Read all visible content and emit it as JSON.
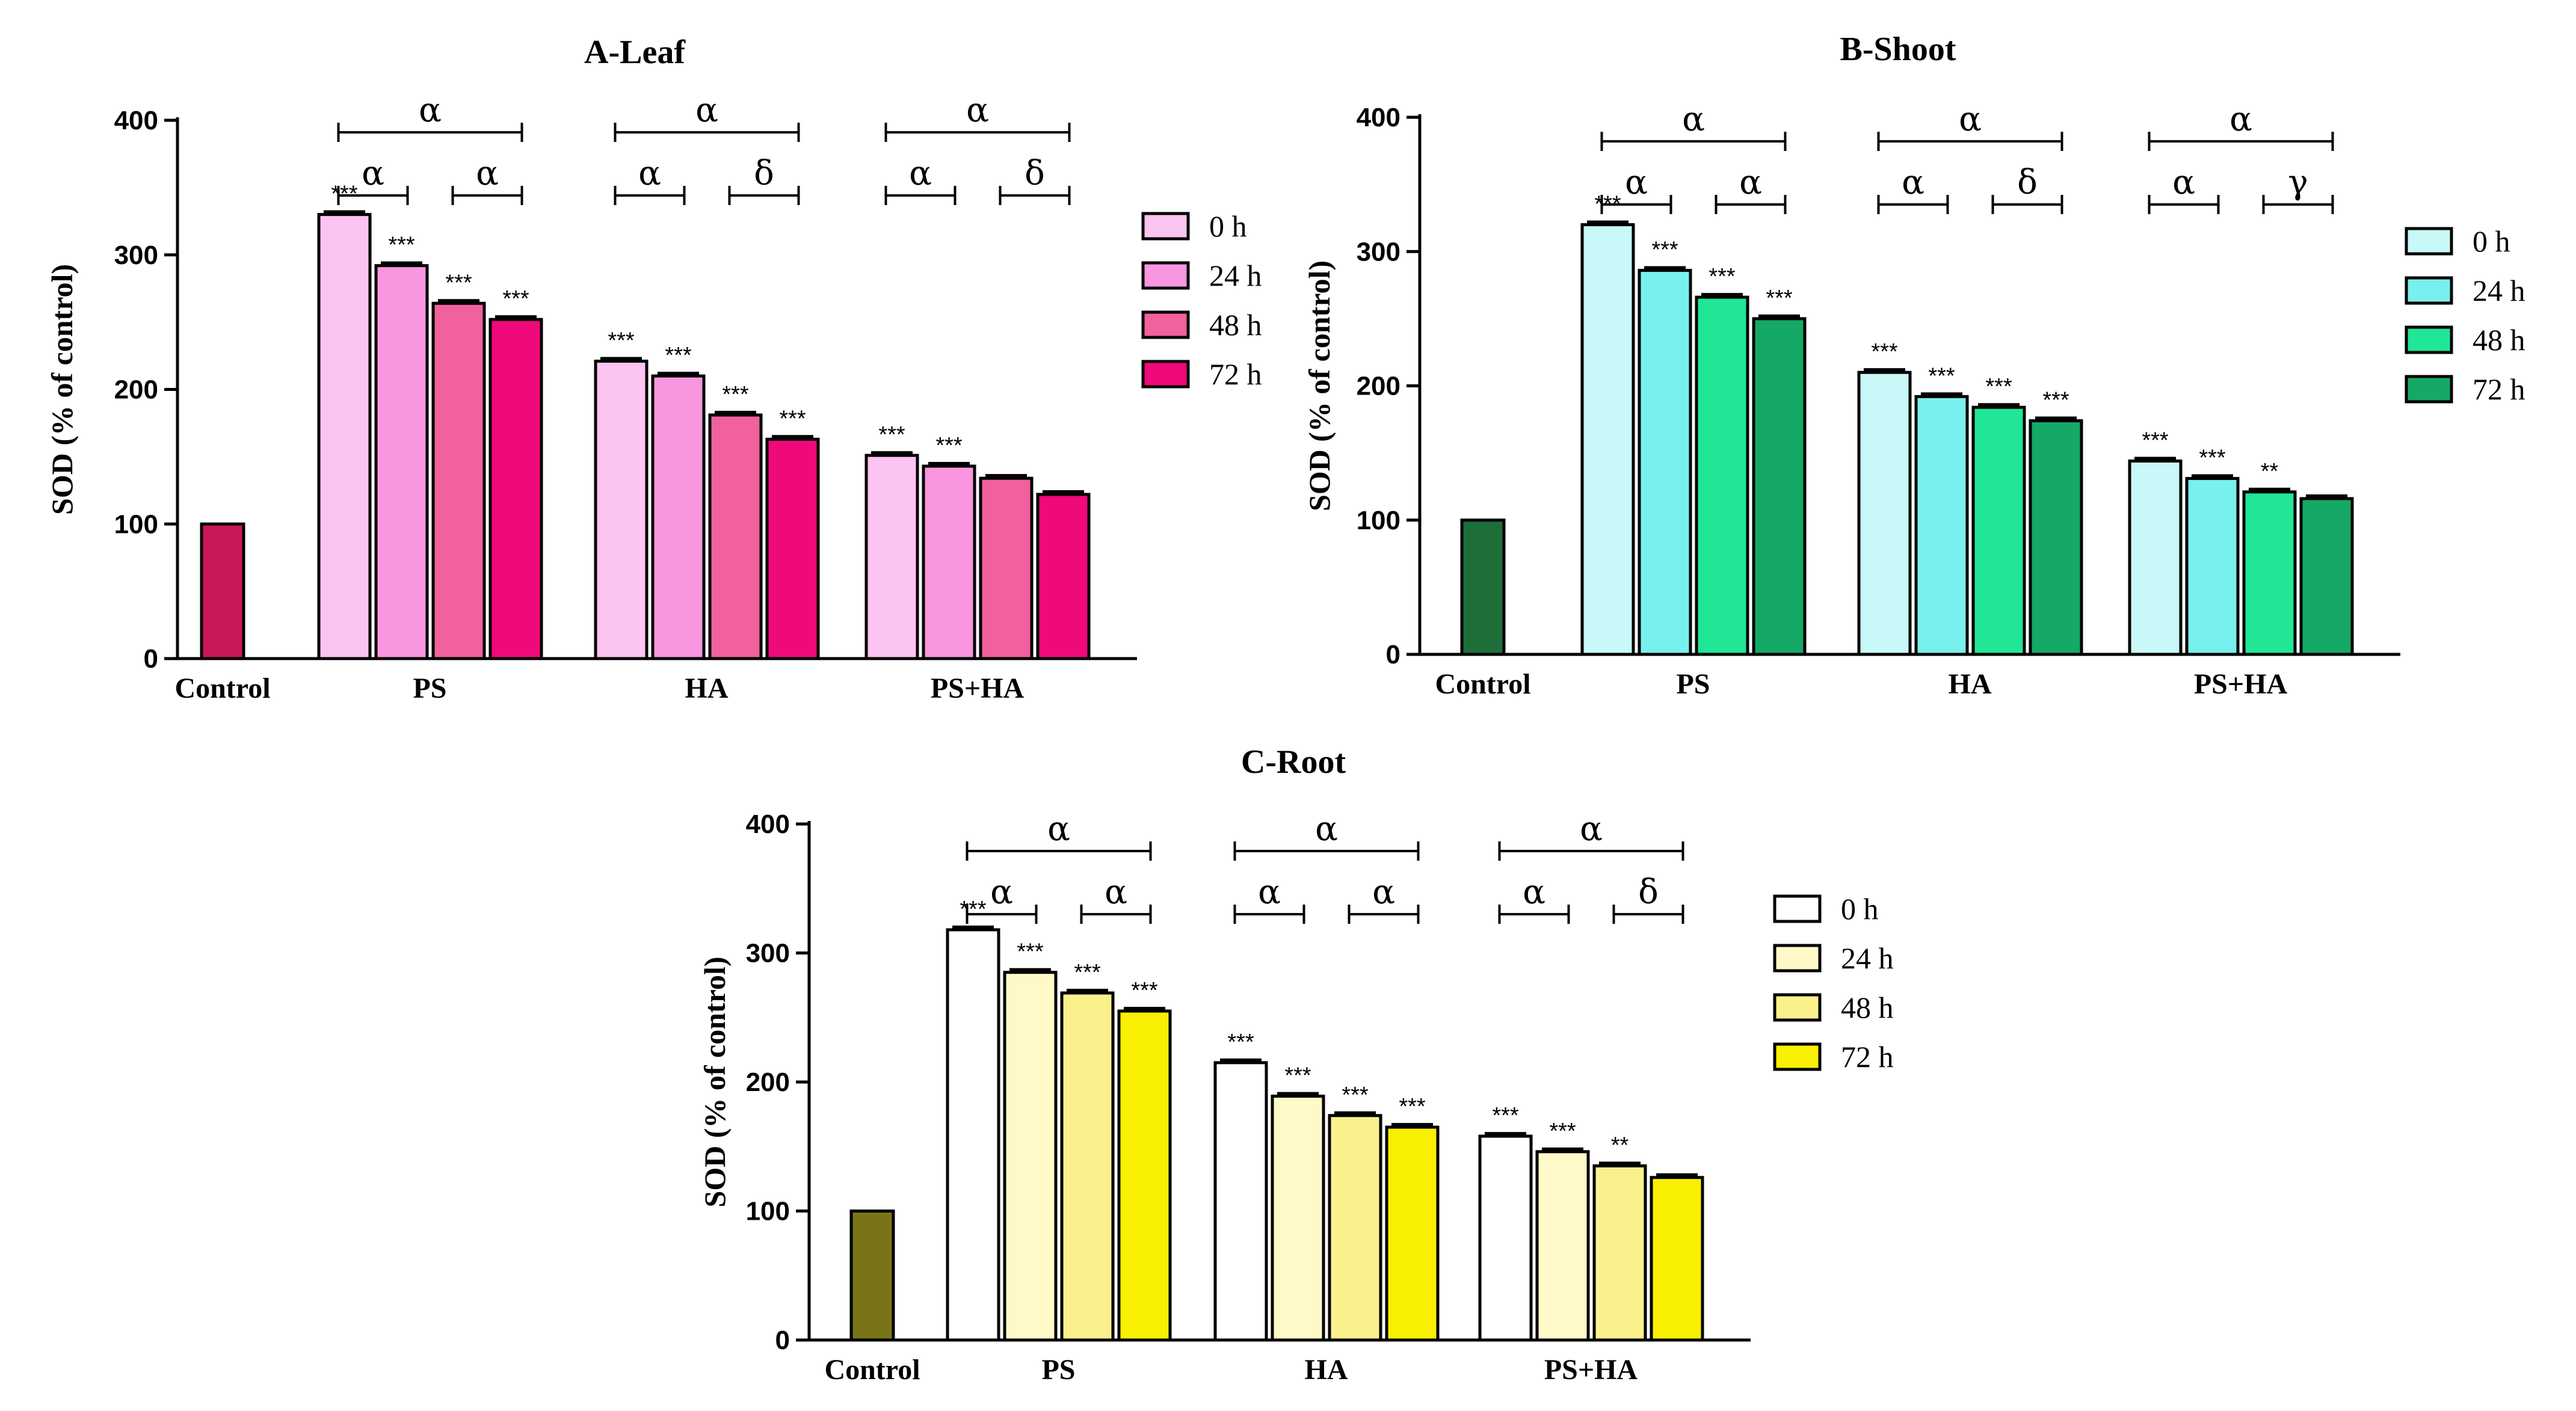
{
  "chart_data": [
    {
      "type": "bar",
      "title": "A-Leaf",
      "ylabel": "SOD (% of control)",
      "ylim": [
        0,
        400
      ],
      "yticks": [
        "0",
        "100",
        "200",
        "300",
        "400"
      ],
      "categories": [
        "Control",
        "PS",
        "HA",
        "PS+HA"
      ],
      "control_value": 100,
      "legend": [
        "0 h",
        "24 h",
        "48 h",
        "72 h"
      ],
      "legend_position": "right",
      "colors": {
        "control": "#C8185A",
        "series": [
          "#FCC4F0",
          "#F896E0",
          "#F0619E",
          "#F0097A"
        ]
      },
      "groups": [
        {
          "category": "PS",
          "values": [
            330,
            292,
            264,
            252
          ],
          "stars": [
            "***",
            "***",
            "***",
            "***"
          ],
          "brackets": [
            {
              "from": 0,
              "to": 3,
              "symbol": "α",
              "level": 2
            },
            {
              "from": 0,
              "to": 1,
              "symbol": "α",
              "level": 1
            },
            {
              "from": 2,
              "to": 3,
              "symbol": "α",
              "level": 1
            }
          ]
        },
        {
          "category": "HA",
          "values": [
            221,
            210,
            181,
            163
          ],
          "stars": [
            "***",
            "***",
            "***",
            "***"
          ],
          "brackets": [
            {
              "from": 0,
              "to": 3,
              "symbol": "α",
              "level": 2
            },
            {
              "from": 0,
              "to": 1,
              "symbol": "α",
              "level": 1
            },
            {
              "from": 2,
              "to": 3,
              "symbol": "δ",
              "level": 1
            }
          ]
        },
        {
          "category": "PS+HA",
          "values": [
            151,
            143,
            134,
            122
          ],
          "stars": [
            "***",
            "***",
            "",
            ""
          ],
          "brackets": [
            {
              "from": 0,
              "to": 3,
              "symbol": "α",
              "level": 2
            },
            {
              "from": 0,
              "to": 1,
              "symbol": "α",
              "level": 1
            },
            {
              "from": 2,
              "to": 3,
              "symbol": "δ",
              "level": 1
            }
          ]
        }
      ]
    },
    {
      "type": "bar",
      "title": "B-Shoot",
      "ylabel": "SOD (% of control)",
      "ylim": [
        0,
        400
      ],
      "yticks": [
        "0",
        "100",
        "200",
        "300",
        "400"
      ],
      "categories": [
        "Control",
        "PS",
        "HA",
        "PS+HA"
      ],
      "control_value": 100,
      "legend": [
        "0 h",
        "24 h",
        "48 h",
        "72 h"
      ],
      "legend_position": "right",
      "colors": {
        "control": "#1E6E3A",
        "series": [
          "#C8F8F8",
          "#78F0EE",
          "#20E696",
          "#16A866"
        ]
      },
      "groups": [
        {
          "category": "PS",
          "values": [
            320,
            286,
            266,
            250
          ],
          "stars": [
            "***",
            "***",
            "***",
            "***"
          ],
          "brackets": [
            {
              "from": 0,
              "to": 3,
              "symbol": "α",
              "level": 2
            },
            {
              "from": 0,
              "to": 1,
              "symbol": "α",
              "level": 1
            },
            {
              "from": 2,
              "to": 3,
              "symbol": "α",
              "level": 1
            }
          ]
        },
        {
          "category": "HA",
          "values": [
            210,
            192,
            184,
            174
          ],
          "stars": [
            "***",
            "***",
            "***",
            "***"
          ],
          "brackets": [
            {
              "from": 0,
              "to": 3,
              "symbol": "α",
              "level": 2
            },
            {
              "from": 0,
              "to": 1,
              "symbol": "α",
              "level": 1
            },
            {
              "from": 2,
              "to": 3,
              "symbol": "δ",
              "level": 1
            }
          ]
        },
        {
          "category": "PS+HA",
          "values": [
            144,
            131,
            121,
            116
          ],
          "stars": [
            "***",
            "***",
            "**",
            ""
          ],
          "brackets": [
            {
              "from": 0,
              "to": 3,
              "symbol": "α",
              "level": 2
            },
            {
              "from": 0,
              "to": 1,
              "symbol": "α",
              "level": 1
            },
            {
              "from": 2,
              "to": 3,
              "symbol": "γ",
              "level": 1
            }
          ]
        }
      ]
    },
    {
      "type": "bar",
      "title": "C-Root",
      "ylabel": "SOD (% of control)",
      "ylim": [
        0,
        400
      ],
      "yticks": [
        "0",
        "100",
        "200",
        "300",
        "400"
      ],
      "categories": [
        "Control",
        "PS",
        "HA",
        "PS+HA"
      ],
      "control_value": 100,
      "legend": [
        "0 h",
        "24 h",
        "48 h",
        "72 h"
      ],
      "legend_position": "right",
      "colors": {
        "control": "#7A7418",
        "series": [
          "#FFFFFF",
          "#FFF8C8",
          "#FAF08C",
          "#F8F000"
        ]
      },
      "groups": [
        {
          "category": "PS",
          "values": [
            318,
            285,
            269,
            255
          ],
          "stars": [
            "***",
            "***",
            "***",
            "***"
          ],
          "brackets": [
            {
              "from": 0,
              "to": 3,
              "symbol": "α",
              "level": 2
            },
            {
              "from": 0,
              "to": 1,
              "symbol": "α",
              "level": 1
            },
            {
              "from": 2,
              "to": 3,
              "symbol": "α",
              "level": 1
            }
          ]
        },
        {
          "category": "HA",
          "values": [
            215,
            189,
            174,
            165
          ],
          "stars": [
            "***",
            "***",
            "***",
            "***"
          ],
          "brackets": [
            {
              "from": 0,
              "to": 3,
              "symbol": "α",
              "level": 2
            },
            {
              "from": 0,
              "to": 1,
              "symbol": "α",
              "level": 1
            },
            {
              "from": 2,
              "to": 3,
              "symbol": "α",
              "level": 1
            }
          ]
        },
        {
          "category": "PS+HA",
          "values": [
            158,
            146,
            135,
            126
          ],
          "stars": [
            "***",
            "***",
            "**",
            ""
          ],
          "brackets": [
            {
              "from": 0,
              "to": 3,
              "symbol": "α",
              "level": 2
            },
            {
              "from": 0,
              "to": 1,
              "symbol": "α",
              "level": 1
            },
            {
              "from": 2,
              "to": 3,
              "symbol": "δ",
              "level": 1
            }
          ]
        }
      ]
    }
  ]
}
